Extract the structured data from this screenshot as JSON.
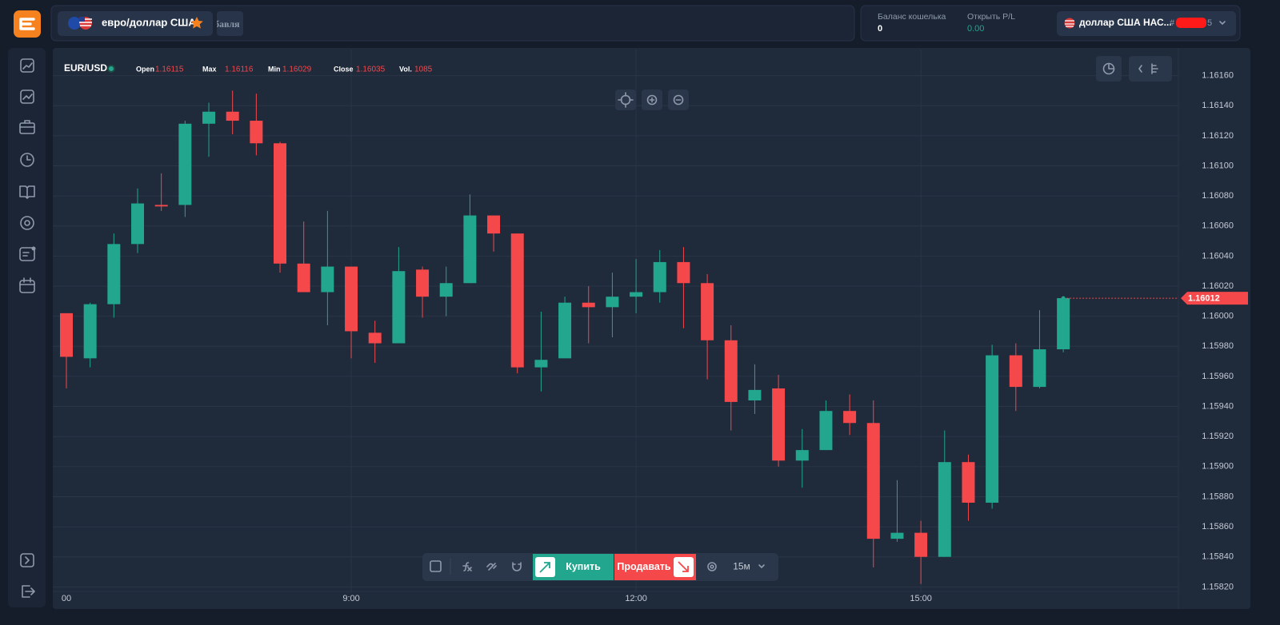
{
  "header": {
    "pair": "евро/доллар США",
    "add_button": "обавля",
    "balance_label": "Баланс кошелька",
    "balance": "0",
    "pl_label": "Открыть P/L",
    "pl": "0.00",
    "account_name": "доллар США НАС...",
    "account_prefix": "#",
    "account_suffix": "5"
  },
  "chart_data": {
    "type": "candlestick",
    "info": {
      "symbol": "EUR/USD",
      "labels": [
        "Open",
        "Max",
        "Min",
        "Close",
        "Vol."
      ],
      "values": [
        1.16115,
        1.16116,
        1.16029,
        1.16035,
        1085
      ]
    },
    "categories": [
      "00",
      null,
      null,
      null,
      null,
      null,
      null,
      null,
      null,
      null,
      null,
      null,
      "9:00",
      null,
      null,
      null,
      null,
      null,
      null,
      null,
      null,
      null,
      null,
      null,
      "12:00",
      null,
      null,
      null,
      null,
      null,
      null,
      null,
      null,
      null,
      null,
      null,
      "15:00",
      null,
      null,
      null,
      null,
      null,
      null
    ],
    "open": [
      1.16002,
      1.15972,
      1.16008,
      1.16048,
      1.16074,
      1.16074,
      1.16128,
      1.16136,
      1.1613,
      1.16115,
      1.16035,
      1.16016,
      1.16033,
      1.15989,
      1.15982,
      1.16031,
      1.16013,
      1.16022,
      1.16067,
      1.16055,
      1.15966,
      1.15972,
      1.16009,
      1.16006,
      1.16013,
      1.16016,
      1.16036,
      1.16022,
      1.15984,
      1.15944,
      1.15952,
      1.15904,
      1.15911,
      1.15937,
      1.15929,
      1.15852,
      1.15856,
      1.1584,
      1.15903,
      1.15876,
      1.15974,
      1.15953,
      1.15978
    ],
    "high": [
      1.16002,
      1.16009,
      1.16055,
      1.16085,
      1.16095,
      1.1613,
      1.16142,
      1.1615,
      1.16148,
      1.16116,
      1.16063,
      1.1607,
      1.16033,
      1.15997,
      1.16046,
      1.16033,
      1.16033,
      1.16081,
      1.16067,
      1.16055,
      1.16003,
      1.16013,
      1.1602,
      1.16029,
      1.16038,
      1.16044,
      1.16046,
      1.16028,
      1.15994,
      1.15968,
      1.15961,
      1.15925,
      1.15944,
      1.15948,
      1.15944,
      1.15891,
      1.15864,
      1.15924,
      1.15908,
      1.15981,
      1.15982,
      1.16004,
      1.16013
    ],
    "low": [
      1.15952,
      1.15966,
      1.15999,
      1.16042,
      1.1607,
      1.16066,
      1.16106,
      1.16121,
      1.16107,
      1.16029,
      1.16016,
      1.15994,
      1.15972,
      1.15969,
      1.15982,
      1.15999,
      1.16,
      1.16022,
      1.16043,
      1.15962,
      1.1595,
      1.15972,
      1.15982,
      1.15986,
      1.16002,
      1.16009,
      1.15992,
      1.15958,
      1.15924,
      1.15935,
      1.159,
      1.15886,
      1.15911,
      1.15921,
      1.15833,
      1.1585,
      1.15822,
      1.1584,
      1.15864,
      1.15872,
      1.15937,
      1.15952,
      1.15976
    ],
    "close": [
      1.15973,
      1.16008,
      1.16048,
      1.16075,
      1.16073,
      1.16128,
      1.16136,
      1.1613,
      1.16115,
      1.16035,
      1.16016,
      1.16033,
      1.1599,
      1.15982,
      1.1603,
      1.16013,
      1.16022,
      1.16067,
      1.16055,
      1.15966,
      1.15971,
      1.16009,
      1.16006,
      1.16013,
      1.16016,
      1.16036,
      1.16022,
      1.15984,
      1.15943,
      1.15951,
      1.15904,
      1.15911,
      1.15937,
      1.15929,
      1.15852,
      1.15856,
      1.1584,
      1.15903,
      1.15876,
      1.15974,
      1.15953,
      1.15978,
      1.16012
    ],
    "up_color": "#22a68d",
    "down_color": "#f4484b",
    "last_price": 1.16012,
    "ylim": [
      1.15817,
      1.16172
    ],
    "yticks": [
      {
        "value": 1.1616,
        "label": "1.16160"
      },
      {
        "value": 1.1614,
        "label": "1.16140"
      },
      {
        "value": 1.1612,
        "label": "1.16120"
      },
      {
        "value": 1.161,
        "label": "1.16100"
      },
      {
        "value": 1.1608,
        "label": "1.16080"
      },
      {
        "value": 1.1606,
        "label": "1.16060"
      },
      {
        "value": 1.1604,
        "label": "1.16040"
      },
      {
        "value": 1.1602,
        "label": "1.16020"
      },
      {
        "value": 1.16,
        "label": "1.16000"
      },
      {
        "value": 1.1598,
        "label": "1.15980"
      },
      {
        "value": 1.1596,
        "label": "1.15960"
      },
      {
        "value": 1.1594,
        "label": "1.15940"
      },
      {
        "value": 1.1592,
        "label": "1.15920"
      },
      {
        "value": 1.159,
        "label": "1.15900"
      },
      {
        "value": 1.1588,
        "label": "1.15880"
      },
      {
        "value": 1.1586,
        "label": "1.15860"
      },
      {
        "value": 1.1584,
        "label": "1.15840"
      },
      {
        "value": 1.1582,
        "label": "1.15820"
      }
    ],
    "grid": true
  },
  "toolbar": {
    "buy": "Купить",
    "sell": "Продавать",
    "timeframe": "15м"
  }
}
